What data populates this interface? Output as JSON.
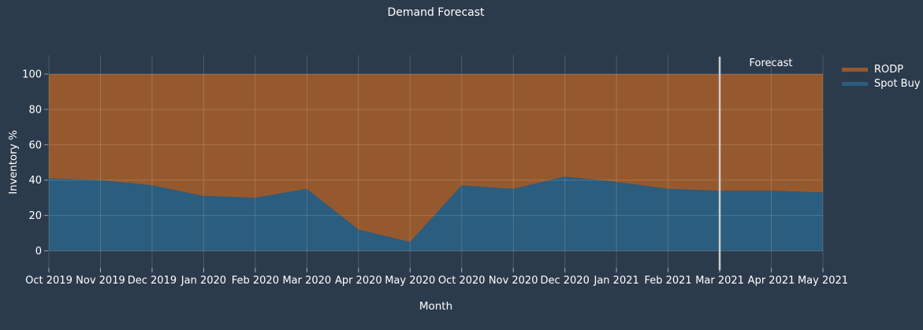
{
  "title": "Demand Forecast",
  "axes": {
    "x_title": "Month",
    "y_title": "Inventory %"
  },
  "annotation": {
    "label": "Forecast"
  },
  "colors": {
    "background": "#2c3b4c",
    "rodp": "#96592e",
    "spot_buy": "#2b5d7e",
    "gridline": "rgba(255,255,255,0.16)",
    "tick": "rgba(255,255,255,0.5)",
    "text": "#ffffff",
    "forecast_line": "#cccccc"
  },
  "chart_data": {
    "type": "area",
    "stacked": true,
    "total": 100,
    "title": "Demand Forecast",
    "xlabel": "Month",
    "ylabel": "Inventory %",
    "ylim": [
      0,
      100
    ],
    "y_ticks": [
      0,
      20,
      40,
      60,
      80,
      100
    ],
    "grid": true,
    "legend_position": "top-right",
    "categories": [
      "Oct 2019",
      "Nov 2019",
      "Dec 2019",
      "Jan 2020",
      "Feb 2020",
      "Mar 2020",
      "Apr 2020",
      "May 2020",
      "Oct 2020",
      "Nov 2020",
      "Dec 2020",
      "Jan 2021",
      "Feb 2021",
      "Mar 2021",
      "Apr 2021",
      "May 2021"
    ],
    "series": [
      {
        "name": "RODP",
        "color": "#96592e",
        "values": [
          59,
          60,
          63,
          69,
          70,
          65,
          88,
          95,
          63,
          65,
          58,
          61,
          65,
          66,
          66,
          67
        ]
      },
      {
        "name": "Spot Buy",
        "color": "#2b5d7e",
        "values": [
          41,
          40,
          37,
          31,
          30,
          35,
          12,
          5,
          37,
          35,
          42,
          39,
          35,
          34,
          34,
          33
        ]
      }
    ],
    "forecast_line": {
      "category": "Mar 2021",
      "label": "Forecast"
    }
  }
}
